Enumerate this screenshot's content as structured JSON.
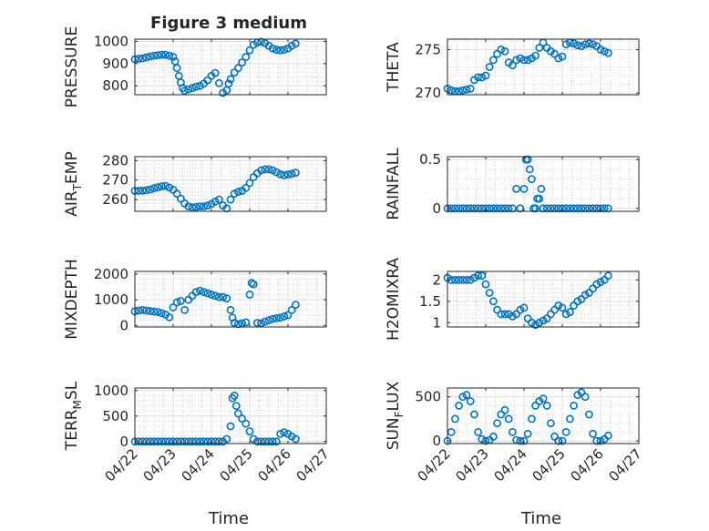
{
  "figure": {
    "title": "Figure 3 medium",
    "xlabel": "Time",
    "x_tick_labels": [
      "04/22",
      "04/23",
      "04/24",
      "04/25",
      "04/26",
      "04/27"
    ],
    "marker_color": "#0072BD"
  },
  "chart_data": [
    {
      "id": "pressure",
      "type": "scatter",
      "title": "Figure 3 medium",
      "ylabel": {
        "base": "PRESSURE",
        "sub": ""
      },
      "xlim": [
        0,
        5
      ],
      "ylim": [
        760,
        1010
      ],
      "yticks": [
        800,
        900,
        1000
      ],
      "x": [
        0.0,
        0.1,
        0.2,
        0.3,
        0.4,
        0.5,
        0.6,
        0.7,
        0.8,
        0.9,
        1.0,
        1.05,
        1.1,
        1.15,
        1.2,
        1.25,
        1.3,
        1.4,
        1.5,
        1.6,
        1.7,
        1.8,
        1.9,
        2.0,
        2.1,
        2.2,
        2.3,
        2.4,
        2.45,
        2.5,
        2.6,
        2.7,
        2.8,
        2.9,
        3.0,
        3.1,
        3.2,
        3.3,
        3.4,
        3.5,
        3.6,
        3.7,
        3.8,
        3.9,
        4.0,
        4.1,
        4.2
      ],
      "y": [
        920,
        922,
        924,
        928,
        932,
        936,
        938,
        940,
        940,
        936,
        930,
        910,
        880,
        845,
        815,
        790,
        778,
        784,
        790,
        796,
        800,
        810,
        825,
        845,
        858,
        812,
        768,
        780,
        810,
        830,
        860,
        880,
        905,
        930,
        960,
        985,
        995,
        998,
        992,
        980,
        968,
        962,
        960,
        962,
        968,
        980,
        990
      ]
    },
    {
      "id": "theta",
      "type": "scatter",
      "ylabel": {
        "base": "THETA",
        "sub": ""
      },
      "xlim": [
        0,
        5
      ],
      "ylim": [
        269.8,
        276.2
      ],
      "yticks": [
        270,
        275
      ],
      "x": [
        0.0,
        0.1,
        0.2,
        0.3,
        0.4,
        0.5,
        0.6,
        0.7,
        0.8,
        0.9,
        1.0,
        1.1,
        1.2,
        1.3,
        1.4,
        1.5,
        1.6,
        1.7,
        1.8,
        1.9,
        2.0,
        2.1,
        2.2,
        2.3,
        2.4,
        2.5,
        2.6,
        2.7,
        2.8,
        2.9,
        3.0,
        3.1,
        3.2,
        3.3,
        3.4,
        3.5,
        3.6,
        3.7,
        3.8,
        3.9,
        4.0,
        4.1,
        4.2
      ],
      "y": [
        270.5,
        270.3,
        270.2,
        270.2,
        270.3,
        270.4,
        270.5,
        271.5,
        271.8,
        271.8,
        272.0,
        273.0,
        273.8,
        274.5,
        275.0,
        274.8,
        273.5,
        273.2,
        273.8,
        274.0,
        273.8,
        273.8,
        274.0,
        274.3,
        275.2,
        275.8,
        275.2,
        274.8,
        274.5,
        274.0,
        274.2,
        275.6,
        275.8,
        275.7,
        275.5,
        275.4,
        275.6,
        275.7,
        275.6,
        275.4,
        275.0,
        274.8,
        274.6
      ]
    },
    {
      "id": "air_temp",
      "type": "scatter",
      "ylabel": {
        "base": "AIR",
        "sub": "T",
        "rest": "EMP"
      },
      "xlim": [
        0,
        5
      ],
      "ylim": [
        254,
        282
      ],
      "yticks": [
        260,
        270,
        280
      ],
      "x": [
        0.0,
        0.1,
        0.2,
        0.3,
        0.4,
        0.5,
        0.6,
        0.7,
        0.8,
        0.9,
        1.0,
        1.1,
        1.2,
        1.3,
        1.4,
        1.5,
        1.6,
        1.7,
        1.8,
        1.9,
        2.0,
        2.1,
        2.2,
        2.3,
        2.4,
        2.5,
        2.6,
        2.7,
        2.8,
        2.9,
        3.0,
        3.1,
        3.2,
        3.3,
        3.4,
        3.5,
        3.6,
        3.7,
        3.8,
        3.9,
        4.0,
        4.1,
        4.2
      ],
      "y": [
        264.5,
        264.5,
        264.6,
        264.8,
        265.2,
        265.8,
        266.3,
        266.8,
        267.0,
        266.2,
        265.0,
        263.0,
        260.5,
        258.0,
        256.5,
        256.0,
        256.2,
        256.5,
        256.5,
        257.0,
        257.8,
        259.0,
        260.0,
        257.0,
        255.5,
        260.0,
        263.0,
        264.0,
        264.5,
        266.0,
        268.5,
        271.5,
        273.5,
        275.0,
        275.5,
        275.5,
        275.0,
        274.0,
        273.0,
        272.5,
        272.8,
        273.2,
        273.8
      ]
    },
    {
      "id": "rainfall",
      "type": "scatter",
      "ylabel": {
        "base": "RAINFALL",
        "sub": ""
      },
      "xlim": [
        0,
        5
      ],
      "ylim": [
        -0.03,
        0.53
      ],
      "yticks": [
        0,
        0.5
      ],
      "x": [
        0.0,
        0.1,
        0.2,
        0.3,
        0.4,
        0.5,
        0.6,
        0.7,
        0.8,
        0.9,
        1.0,
        1.1,
        1.2,
        1.3,
        1.4,
        1.5,
        1.6,
        1.7,
        1.8,
        1.9,
        2.0,
        2.05,
        2.1,
        2.15,
        2.2,
        2.25,
        2.3,
        2.35,
        2.4,
        2.45,
        2.5,
        2.6,
        2.7,
        2.8,
        2.9,
        3.0,
        3.1,
        3.2,
        3.3,
        3.4,
        3.5,
        3.6,
        3.7,
        3.8,
        3.9,
        4.0,
        4.1,
        4.2
      ],
      "y": [
        0,
        0,
        0,
        0,
        0,
        0,
        0,
        0,
        0,
        0,
        0,
        0,
        0,
        0,
        0,
        0,
        0,
        0,
        0.2,
        0,
        0.2,
        0.5,
        0.5,
        0.4,
        0.3,
        0,
        0,
        0.1,
        0.1,
        0.2,
        0,
        0,
        0,
        0,
        0,
        0,
        0,
        0,
        0,
        0,
        0,
        0,
        0,
        0,
        0,
        0,
        0,
        0
      ]
    },
    {
      "id": "mixdepth",
      "type": "scatter",
      "ylabel": {
        "base": "MIXDEPTH",
        "sub": ""
      },
      "xlim": [
        0,
        5
      ],
      "ylim": [
        -60,
        2100
      ],
      "yticks": [
        0,
        1000,
        2000
      ],
      "x": [
        0.0,
        0.1,
        0.2,
        0.3,
        0.4,
        0.5,
        0.6,
        0.7,
        0.8,
        0.9,
        1.0,
        1.1,
        1.2,
        1.3,
        1.4,
        1.5,
        1.6,
        1.7,
        1.8,
        1.9,
        2.0,
        2.1,
        2.2,
        2.3,
        2.4,
        2.5,
        2.55,
        2.6,
        2.7,
        2.8,
        2.9,
        3.0,
        3.05,
        3.1,
        3.2,
        3.3,
        3.4,
        3.5,
        3.6,
        3.7,
        3.8,
        3.9,
        4.0,
        4.1,
        4.2
      ],
      "y": [
        550,
        580,
        600,
        580,
        560,
        540,
        520,
        480,
        420,
        320,
        700,
        900,
        950,
        600,
        1000,
        1150,
        1300,
        1350,
        1300,
        1250,
        1200,
        1150,
        1100,
        1100,
        1050,
        600,
        300,
        100,
        50,
        80,
        120,
        1200,
        1650,
        1600,
        100,
        80,
        150,
        200,
        250,
        280,
        300,
        350,
        400,
        600,
        800
      ]
    },
    {
      "id": "h2omixra",
      "type": "scatter",
      "ylabel": {
        "base": "H2OMIXRA",
        "sub": ""
      },
      "xlim": [
        0,
        5
      ],
      "ylim": [
        0.9,
        2.2
      ],
      "yticks": [
        1,
        1.5,
        2
      ],
      "x": [
        0.0,
        0.1,
        0.2,
        0.3,
        0.4,
        0.5,
        0.6,
        0.7,
        0.8,
        0.9,
        1.0,
        1.1,
        1.2,
        1.3,
        1.4,
        1.5,
        1.6,
        1.7,
        1.8,
        1.9,
        2.0,
        2.1,
        2.2,
        2.3,
        2.4,
        2.5,
        2.6,
        2.7,
        2.8,
        2.9,
        3.0,
        3.1,
        3.2,
        3.3,
        3.4,
        3.5,
        3.6,
        3.7,
        3.8,
        3.9,
        4.0,
        4.1,
        4.2
      ],
      "y": [
        2.05,
        2.0,
        2.0,
        2.0,
        2.0,
        2.0,
        2.0,
        2.05,
        2.1,
        2.1,
        1.9,
        1.7,
        1.5,
        1.3,
        1.2,
        1.2,
        1.2,
        1.15,
        1.2,
        1.3,
        1.35,
        1.1,
        1.0,
        0.95,
        1.0,
        1.05,
        1.1,
        1.2,
        1.3,
        1.4,
        1.35,
        1.2,
        1.25,
        1.4,
        1.5,
        1.55,
        1.65,
        1.7,
        1.8,
        1.9,
        1.95,
        2.0,
        2.1
      ]
    },
    {
      "id": "terr_msl",
      "type": "scatter",
      "ylabel": {
        "base": "TERR",
        "sub": "M",
        "rest": "SL"
      },
      "xlim": [
        0,
        5
      ],
      "ylim": [
        -40,
        1050
      ],
      "yticks": [
        0,
        500,
        1000
      ],
      "x": [
        0.0,
        0.1,
        0.2,
        0.3,
        0.4,
        0.5,
        0.6,
        0.7,
        0.8,
        0.9,
        1.0,
        1.1,
        1.2,
        1.3,
        1.4,
        1.5,
        1.6,
        1.7,
        1.8,
        1.9,
        2.0,
        2.1,
        2.2,
        2.3,
        2.4,
        2.5,
        2.55,
        2.6,
        2.65,
        2.7,
        2.8,
        2.9,
        3.0,
        3.1,
        3.2,
        3.3,
        3.4,
        3.5,
        3.6,
        3.7,
        3.8,
        3.9,
        4.0,
        4.1,
        4.2
      ],
      "y": [
        0,
        0,
        0,
        0,
        0,
        0,
        0,
        0,
        0,
        0,
        0,
        0,
        0,
        0,
        0,
        0,
        0,
        0,
        0,
        0,
        0,
        0,
        0,
        0,
        50,
        300,
        850,
        900,
        700,
        550,
        450,
        350,
        200,
        50,
        0,
        0,
        0,
        0,
        0,
        0,
        150,
        180,
        150,
        100,
        50
      ]
    },
    {
      "id": "sun_flux",
      "type": "scatter",
      "ylabel": {
        "base": "SUN",
        "sub": "F",
        "rest": "LUX"
      },
      "xlim": [
        0,
        5
      ],
      "ylim": [
        -30,
        600
      ],
      "yticks": [
        0,
        500
      ],
      "x": [
        0.0,
        0.1,
        0.2,
        0.3,
        0.4,
        0.5,
        0.6,
        0.7,
        0.8,
        0.9,
        1.0,
        1.1,
        1.2,
        1.3,
        1.4,
        1.5,
        1.6,
        1.7,
        1.8,
        1.9,
        2.0,
        2.1,
        2.2,
        2.3,
        2.4,
        2.5,
        2.6,
        2.7,
        2.8,
        2.9,
        3.0,
        3.1,
        3.2,
        3.3,
        3.4,
        3.5,
        3.6,
        3.7,
        3.8,
        3.9,
        4.0,
        4.1,
        4.2
      ],
      "y": [
        0,
        100,
        250,
        400,
        500,
        520,
        450,
        300,
        100,
        20,
        0,
        10,
        50,
        200,
        300,
        350,
        250,
        100,
        10,
        0,
        0,
        80,
        250,
        400,
        450,
        480,
        400,
        200,
        50,
        0,
        0,
        100,
        250,
        400,
        520,
        550,
        500,
        300,
        80,
        0,
        0,
        20,
        60
      ]
    }
  ]
}
